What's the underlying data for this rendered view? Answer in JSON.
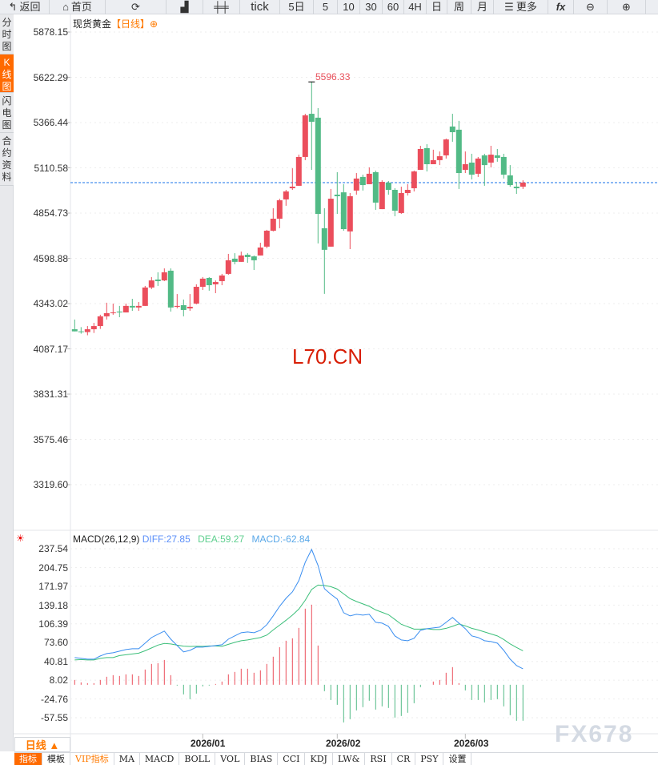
{
  "toolbar": {
    "back": "返回",
    "home": "首页",
    "tick": "tick",
    "five_day": "5日",
    "periods": [
      "5",
      "10",
      "30",
      "60",
      "4H",
      "日",
      "周",
      "月"
    ],
    "more": "更多",
    "fx": "fx"
  },
  "left_tabs": [
    "分时图",
    "K线图",
    "闪电图",
    "合约资料"
  ],
  "title": {
    "name": "现货黄金",
    "period": "【日线】",
    "icon": "⊕"
  },
  "high_marker": "5596.33",
  "watermark": "L70.CN",
  "brand_watermark": "FX678",
  "price_axis": [
    "5878.15",
    "5622.29",
    "5366.44",
    "5110.58",
    "4854.73",
    "4598.88",
    "4343.02",
    "4087.17",
    "3831.31",
    "3575.46",
    "3319.60"
  ],
  "macd_axis": [
    "237.54",
    "204.75",
    "171.97",
    "139.18",
    "106.39",
    "73.60",
    "40.81",
    "8.02",
    "-24.76",
    "-57.55"
  ],
  "macd_header": {
    "name": "MACD(26,12,9)",
    "diff": "DIFF:27.85",
    "dea": "DEA:59.27",
    "macd": "MACD:-62.84"
  },
  "x_axis": [
    "2026/01",
    "2026/02",
    "2026/03"
  ],
  "period_selector": "日线 ▲",
  "bottom_tabs": [
    "指标",
    "模板",
    "VIP指标",
    "MA",
    "MACD",
    "BOLL",
    "VOL",
    "BIAS",
    "CCI",
    "KDJ",
    "LW&",
    "RSI",
    "CR",
    "PSY",
    "设置"
  ],
  "colors": {
    "up": "#eb4e5c",
    "down": "#52ba86",
    "diff": "#3a8ef0",
    "dea": "#3cbf7a",
    "accent": "#ff6a00"
  },
  "chart_data": {
    "type": "candlestick",
    "title": "现货黄金 日线",
    "ylim": [
      3319.6,
      5878.15
    ],
    "last_price": 5027,
    "ohlc": [
      [
        4198,
        4253,
        4186,
        4186
      ],
      [
        4186,
        4210,
        4173,
        4182
      ],
      [
        4182,
        4216,
        4164,
        4198
      ],
      [
        4198,
        4234,
        4177,
        4216
      ],
      [
        4216,
        4280,
        4200,
        4271
      ],
      [
        4271,
        4348,
        4253,
        4289
      ],
      [
        4289,
        4343,
        4280,
        4293
      ],
      [
        4298,
        4330,
        4266,
        4293
      ],
      [
        4293,
        4343,
        4293,
        4330
      ],
      [
        4330,
        4370,
        4302,
        4321
      ],
      [
        4321,
        4352,
        4302,
        4330
      ],
      [
        4330,
        4443,
        4330,
        4434
      ],
      [
        4434,
        4493,
        4425,
        4474
      ],
      [
        4479,
        4520,
        4443,
        4470
      ],
      [
        4474,
        4542,
        4470,
        4520
      ],
      [
        4529,
        4542,
        4298,
        4321
      ],
      [
        4325,
        4397,
        4316,
        4330
      ],
      [
        4334,
        4366,
        4271,
        4307
      ],
      [
        4316,
        4397,
        4302,
        4325
      ],
      [
        4343,
        4452,
        4339,
        4438
      ],
      [
        4438,
        4493,
        4420,
        4484
      ],
      [
        4488,
        4493,
        4416,
        4447
      ],
      [
        4452,
        4474,
        4402,
        4465
      ],
      [
        4470,
        4511,
        4447,
        4502
      ],
      [
        4511,
        4624,
        4506,
        4588
      ],
      [
        4597,
        4628,
        4565,
        4579
      ],
      [
        4579,
        4637,
        4579,
        4615
      ],
      [
        4619,
        4628,
        4574,
        4606
      ],
      [
        4610,
        4615,
        4533,
        4588
      ],
      [
        4615,
        4687,
        4615,
        4660
      ],
      [
        4665,
        4760,
        4656,
        4755
      ],
      [
        4755,
        4882,
        4751,
        4823
      ],
      [
        4823,
        4936,
        4769,
        4927
      ],
      [
        4932,
        4986,
        4896,
        4977
      ],
      [
        4995,
        5108,
        4986,
        5004
      ],
      [
        5009,
        5185,
        5009,
        5172
      ],
      [
        5172,
        5416,
        5154,
        5407
      ],
      [
        5416,
        5596.33,
        5099,
        5371
      ],
      [
        5394,
        5448,
        4683,
        4850
      ],
      [
        4769,
        4882,
        4398,
        4647
      ],
      [
        4665,
        4991,
        4665,
        4936
      ],
      [
        4959,
        5086,
        4850,
        4950
      ],
      [
        4972,
        5018,
        4755,
        4764
      ],
      [
        4751,
        4968,
        4651,
        4950
      ],
      [
        4982,
        5081,
        4959,
        5050
      ],
      [
        5059,
        5072,
        4982,
        5013
      ],
      [
        5018,
        5113,
        5018,
        5077
      ],
      [
        5086,
        5095,
        4873,
        4914
      ],
      [
        4877,
        5040,
        4877,
        5031
      ],
      [
        5027,
        5036,
        4959,
        4986
      ],
      [
        4986,
        4995,
        4837,
        4868
      ],
      [
        4855,
        5004,
        4850,
        4968
      ],
      [
        4968,
        5018,
        4954,
        4986
      ],
      [
        4995,
        5095,
        4977,
        5090
      ],
      [
        5099,
        5235,
        5099,
        5217
      ],
      [
        5222,
        5244,
        5090,
        5131
      ],
      [
        5131,
        5213,
        5131,
        5154
      ],
      [
        5154,
        5203,
        5126,
        5176
      ],
      [
        5181,
        5276,
        5163,
        5271
      ],
      [
        5344,
        5416,
        5258,
        5312
      ],
      [
        5326,
        5376,
        4991,
        5081
      ],
      [
        5099,
        5203,
        5081,
        5131
      ],
      [
        5140,
        5190,
        5045,
        5072
      ],
      [
        5077,
        5172,
        5059,
        5163
      ],
      [
        5181,
        5190,
        5009,
        5126
      ],
      [
        5140,
        5235,
        5113,
        5185
      ],
      [
        5181,
        5217,
        5145,
        5167
      ],
      [
        5172,
        5190,
        5050,
        5072
      ],
      [
        5068,
        5126,
        5004,
        5013
      ],
      [
        5004,
        5031,
        4963,
        4995
      ],
      [
        5004,
        5040,
        4991,
        5027
      ]
    ],
    "month_starts": {
      "2026/01": 20,
      "2026/02": 41,
      "2026/03": 61
    },
    "macd": {
      "params": [
        26,
        12,
        9
      ],
      "ylim": [
        -57.55,
        237.54
      ],
      "diff": [
        47.5,
        46.1,
        44.7,
        44.7,
        50.3,
        54.5,
        55.9,
        58.7,
        61.5,
        62.9,
        62.9,
        72.7,
        82.5,
        88.1,
        93.7,
        79.7,
        68.5,
        57.3,
        60.1,
        65.7,
        65.7,
        67.1,
        68.5,
        69.9,
        79.7,
        85.3,
        90.9,
        92.3,
        90.9,
        95.1,
        104.9,
        120.3,
        137.0,
        151.0,
        162.2,
        181.7,
        213.9,
        236.3,
        208.3,
        167.8,
        158.0,
        149.6,
        125.8,
        120.3,
        123.0,
        121.6,
        123.0,
        109.0,
        107.6,
        102.0,
        85.3,
        78.3,
        76.9,
        81.1,
        95.1,
        97.9,
        99.3,
        100.7,
        109.0,
        117.5,
        107.6,
        97.9,
        85.3,
        82.5,
        76.9,
        75.5,
        72.7,
        60.1,
        44.7,
        33.6,
        27.85
      ],
      "dea": [
        43.3,
        44.0,
        43.3,
        43.3,
        46.1,
        47.5,
        47.5,
        51.0,
        52.4,
        53.8,
        55.2,
        59.4,
        64.3,
        69.3,
        72.1,
        71.3,
        69.2,
        67.5,
        67.0,
        67.2,
        67.1,
        67.8,
        67.8,
        67.1,
        70.6,
        74.1,
        76.9,
        78.3,
        80.4,
        82.5,
        86.7,
        95.8,
        104.2,
        112.6,
        121.7,
        132.1,
        147.5,
        166.4,
        174.1,
        173.4,
        171.3,
        167.1,
        158.7,
        150.4,
        145.4,
        141.2,
        137.0,
        130.7,
        126.5,
        122.3,
        114.0,
        105.6,
        101.4,
        97.2,
        97.2,
        97.9,
        96.5,
        96.5,
        98.5,
        102.1,
        106.2,
        102.8,
        98.6,
        95.8,
        92.3,
        88.8,
        85.3,
        79.0,
        71.3,
        65.1,
        59.27
      ],
      "hist": [
        8.4,
        4.2,
        2.8,
        2.8,
        8.4,
        14.0,
        16.8,
        15.4,
        18.2,
        18.2,
        15.4,
        26.6,
        36.4,
        37.7,
        43.3,
        16.8,
        -1.4,
        -16.8,
        -25.2,
        -15.4,
        -2.8,
        -1.4,
        1.4,
        5.6,
        18.2,
        22.4,
        28.0,
        28.0,
        21.0,
        25.2,
        36.4,
        49.0,
        65.7,
        76.9,
        81.1,
        99.3,
        132.9,
        139.8,
        68.5,
        -11.2,
        -26.6,
        -35.0,
        -65.7,
        -60.1,
        -44.7,
        -39.1,
        -27.9,
        -43.3,
        -37.7,
        -40.5,
        -57.3,
        -54.5,
        -48.9,
        -32.2,
        -4.2,
        0,
        5.6,
        8.4,
        21.0,
        30.8,
        2.8,
        -9.8,
        -26.6,
        -26.6,
        -30.8,
        -26.6,
        -25.2,
        -37.7,
        -53.1,
        -62.9,
        -62.84
      ]
    }
  }
}
